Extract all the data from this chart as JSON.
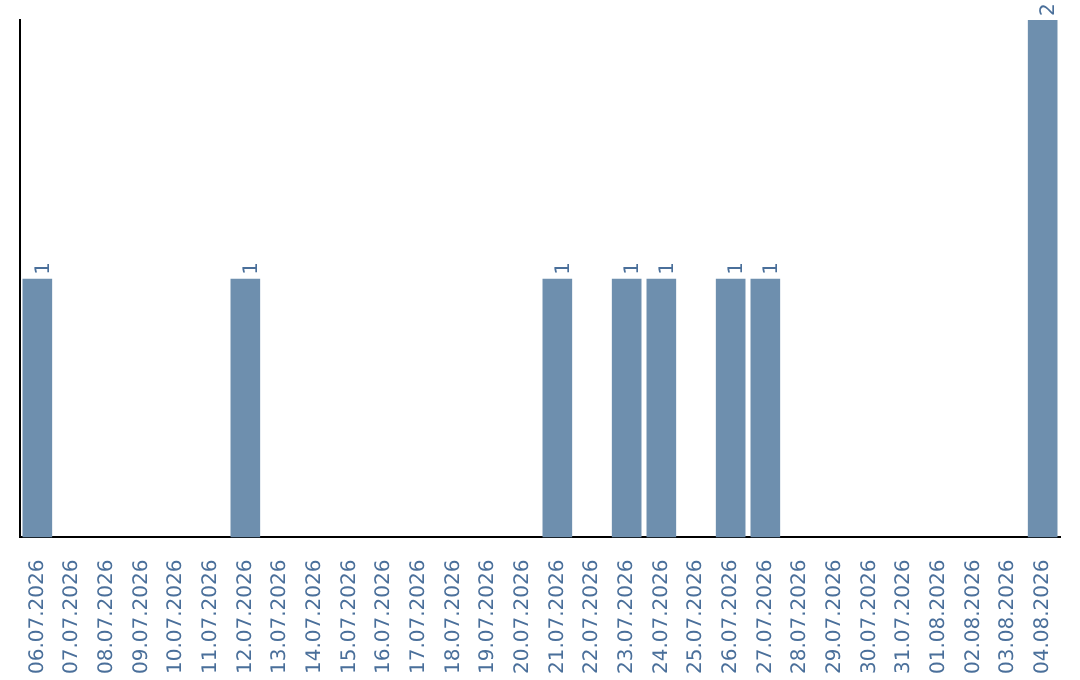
{
  "chart_data": {
    "type": "bar",
    "categories": [
      "06.07.2026",
      "07.07.2026",
      "08.07.2026",
      "09.07.2026",
      "10.07.2026",
      "11.07.2026",
      "12.07.2026",
      "13.07.2026",
      "14.07.2026",
      "15.07.2026",
      "16.07.2026",
      "17.07.2026",
      "18.07.2026",
      "19.07.2026",
      "20.07.2026",
      "21.07.2026",
      "22.07.2026",
      "23.07.2026",
      "24.07.2026",
      "25.07.2026",
      "26.07.2026",
      "27.07.2026",
      "28.07.2026",
      "29.07.2026",
      "30.07.2026",
      "31.07.2026",
      "01.08.2026",
      "02.08.2026",
      "03.08.2026",
      "04.08.2026"
    ],
    "values": [
      1,
      0,
      0,
      0,
      0,
      0,
      1,
      0,
      0,
      0,
      0,
      0,
      0,
      0,
      0,
      1,
      0,
      1,
      1,
      0,
      1,
      1,
      0,
      0,
      0,
      0,
      0,
      0,
      0,
      2
    ],
    "value_labels": [
      "1",
      null,
      null,
      null,
      null,
      null,
      "1",
      null,
      null,
      null,
      null,
      null,
      null,
      null,
      null,
      "1",
      null,
      "1",
      "1",
      null,
      "1",
      "1",
      null,
      null,
      null,
      null,
      null,
      null,
      null,
      "2"
    ],
    "color": "#6e8fae",
    "grid": false,
    "legend": false,
    "tick_labels": "x"
  }
}
